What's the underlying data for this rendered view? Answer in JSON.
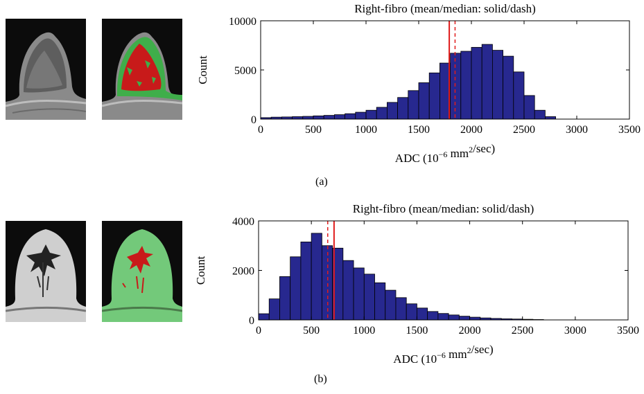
{
  "panels": [
    {
      "id": "a",
      "caption": "(a)",
      "thumbnails": [
        {
          "kind": "dwi-slice",
          "tissue": "heterogeneous fibroglandular"
        },
        {
          "kind": "segmentation-overlay",
          "overlay_colors": [
            "#c81a1a",
            "#3fae4a"
          ]
        }
      ],
      "chart_data": {
        "type": "bar",
        "title": "Right-fibro (mean/median: solid/dash)",
        "xlabel": "ADC (10^-6 mm^2/sec)",
        "ylabel": "Count",
        "xlim": [
          0,
          3500
        ],
        "ylim": [
          0,
          10000
        ],
        "xticks": [
          0,
          500,
          1000,
          1500,
          2000,
          2500,
          3000,
          3500
        ],
        "yticks": [
          0,
          5000,
          10000
        ],
        "bin_width": 100,
        "bin_centers": [
          50,
          150,
          250,
          350,
          450,
          550,
          650,
          750,
          850,
          950,
          1050,
          1150,
          1250,
          1350,
          1450,
          1550,
          1650,
          1750,
          1850,
          1950,
          2050,
          2150,
          2250,
          2350,
          2450,
          2550,
          2650,
          2750
        ],
        "values": [
          150,
          200,
          220,
          250,
          280,
          330,
          380,
          450,
          550,
          700,
          900,
          1200,
          1700,
          2200,
          2900,
          3700,
          4700,
          5700,
          6700,
          6900,
          7300,
          7600,
          7000,
          6400,
          4800,
          2400,
          900,
          250
        ],
        "mean": 1790,
        "median": 1845,
        "bar_color": "#27288f",
        "line_color": "#e01b1b"
      }
    },
    {
      "id": "b",
      "caption": "(b)",
      "thumbnails": [
        {
          "kind": "dwi-slice",
          "tissue": "predominantly fatty"
        },
        {
          "kind": "segmentation-overlay",
          "overlay_colors": [
            "#c81a1a",
            "#73c97a"
          ]
        }
      ],
      "chart_data": {
        "type": "bar",
        "title": "Right-fibro (mean/median: solid/dash)",
        "xlabel": "ADC (10^-6 mm^2/sec)",
        "ylabel": "Count",
        "xlim": [
          0,
          3500
        ],
        "ylim": [
          0,
          4000
        ],
        "xticks": [
          0,
          500,
          1000,
          1500,
          2000,
          2500,
          3000,
          3500
        ],
        "yticks": [
          0,
          2000,
          4000
        ],
        "bin_width": 100,
        "bin_centers": [
          50,
          150,
          250,
          350,
          450,
          550,
          650,
          750,
          850,
          950,
          1050,
          1150,
          1250,
          1350,
          1450,
          1550,
          1650,
          1750,
          1850,
          1950,
          2050,
          2150,
          2250,
          2350,
          2450,
          2550,
          2650
        ],
        "values": [
          250,
          850,
          1750,
          2550,
          3150,
          3500,
          3000,
          2900,
          2400,
          2100,
          1850,
          1500,
          1200,
          900,
          650,
          480,
          340,
          260,
          200,
          150,
          110,
          80,
          60,
          45,
          35,
          25,
          15
        ],
        "mean": 715,
        "median": 655,
        "bar_color": "#27288f",
        "line_color": "#e01b1b"
      }
    }
  ]
}
